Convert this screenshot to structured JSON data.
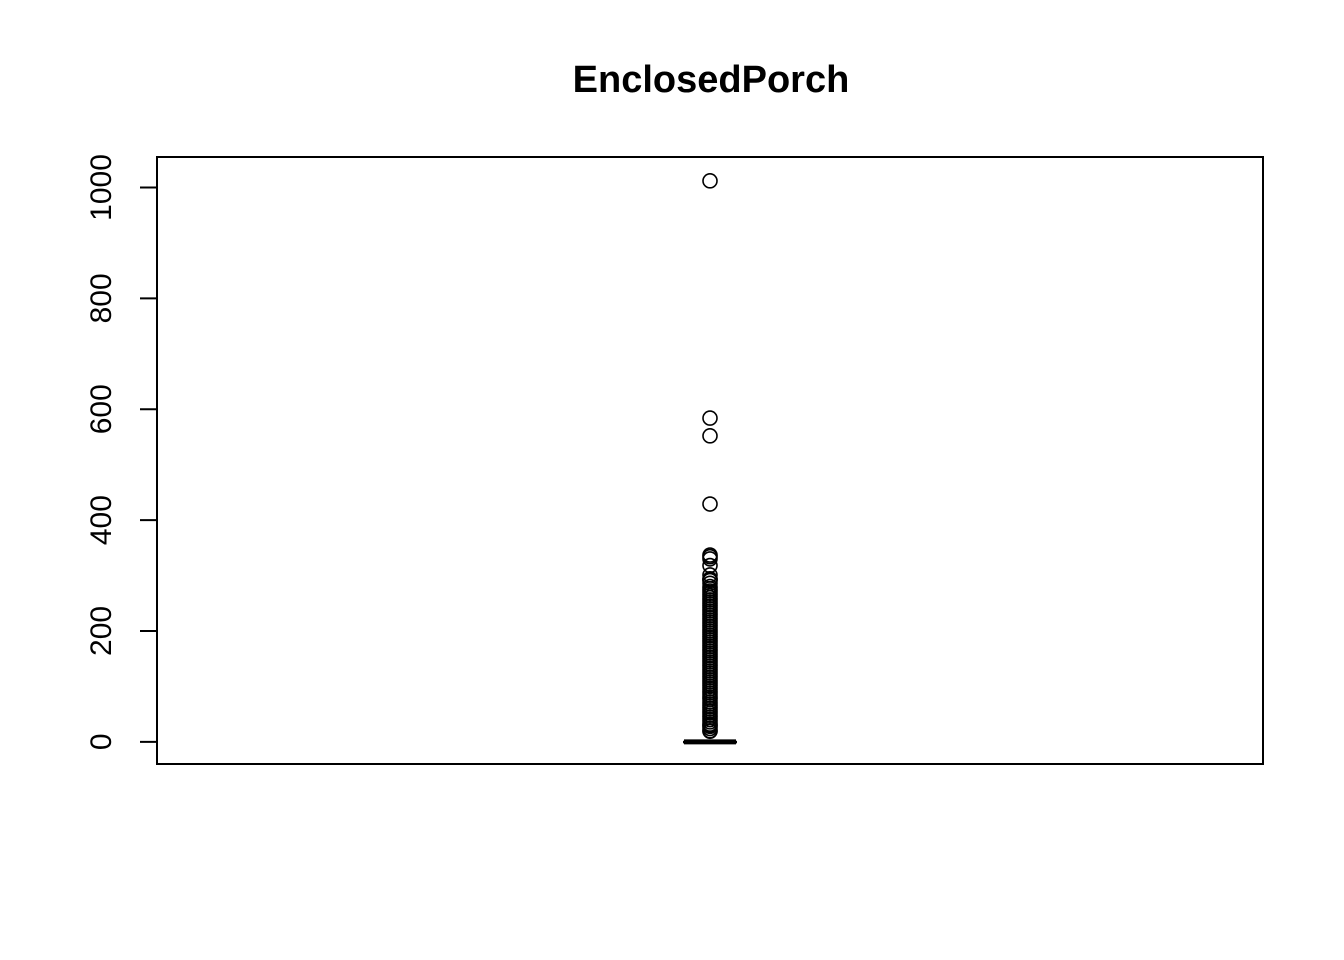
{
  "chart_data": {
    "type": "box",
    "title": "EnclosedPorch",
    "xlabel": "",
    "ylabel": "",
    "ylim": [
      -40,
      1055
    ],
    "y_ticks": [
      0,
      200,
      400,
      600,
      800,
      1000
    ],
    "y_tick_labels": [
      "0",
      "200",
      "400",
      "600",
      "800",
      "1000"
    ],
    "grid": false,
    "legend": "none",
    "box": {
      "min": 0,
      "q1": 0,
      "median": 0,
      "q3": 0,
      "max": 0
    },
    "outliers": [
      1012,
      584,
      552,
      429,
      337,
      334,
      330,
      318,
      301,
      294,
      293,
      291,
      286,
      280,
      276,
      272,
      268,
      264,
      260,
      256,
      252,
      248,
      244,
      240,
      236,
      232,
      228,
      224,
      220,
      216,
      212,
      208,
      204,
      200,
      196,
      192,
      188,
      184,
      180,
      176,
      172,
      168,
      164,
      160,
      156,
      152,
      148,
      144,
      140,
      136,
      132,
      128,
      124,
      120,
      116,
      112,
      108,
      104,
      100,
      96,
      92,
      88,
      84,
      80,
      77,
      72,
      68,
      64,
      60,
      56,
      52,
      48,
      44,
      40,
      36,
      32,
      30,
      28,
      24,
      20,
      19
    ],
    "colors": {
      "stroke": "#000000",
      "background": "#ffffff"
    }
  }
}
